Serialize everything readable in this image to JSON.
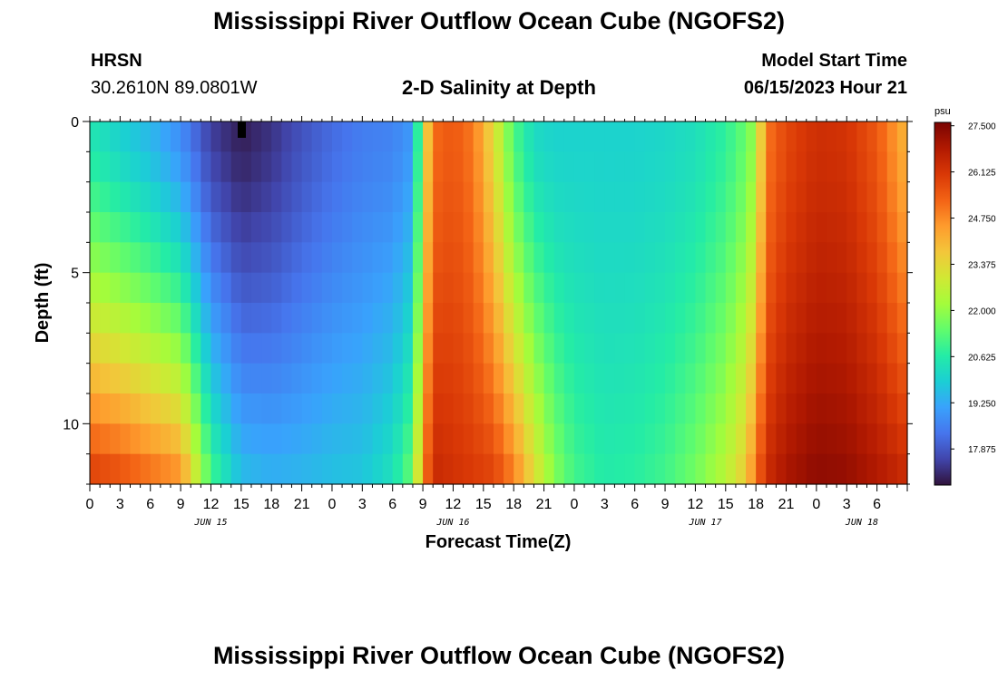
{
  "header": {
    "title": "Mississippi River Outflow Ocean Cube (NGOFS2)",
    "station": "HRSN",
    "location": "30.2610N  89.0801W",
    "subtitle": "2-D Salinity at Depth",
    "model_start_label": "Model Start Time",
    "model_start_value": "06/15/2023 Hour 21"
  },
  "footer": {
    "title": "Mississippi River Outflow Ocean Cube (NGOFS2)"
  },
  "chart_data": {
    "type": "heatmap",
    "title": "2-D Salinity at Depth",
    "xlabel": "Forecast Time(Z)",
    "ylabel": "Depth (ft)",
    "x_tick_labels": [
      "0",
      "3",
      "6",
      "9",
      "12",
      "15",
      "18",
      "21",
      "0",
      "3",
      "6",
      "9",
      "12",
      "15",
      "18",
      "21",
      "0",
      "3",
      "6",
      "9",
      "12",
      "15",
      "18",
      "21",
      "0",
      "3",
      "6"
    ],
    "x_hours": [
      0,
      81
    ],
    "date_labels": [
      {
        "label": "JUN 15",
        "hour": 12
      },
      {
        "label": "JUN 16",
        "hour": 36
      },
      {
        "label": "JUN 17",
        "hour": 61
      },
      {
        "label": "JUN 18",
        "hour": 76.5
      }
    ],
    "ylim": [
      0,
      12
    ],
    "y_ticks": [
      0,
      5,
      10
    ],
    "colorbar": {
      "unit": "psu",
      "tick_labels": [
        "27.500",
        "26.125",
        "24.750",
        "23.375",
        "22.000",
        "20.625",
        "19.250",
        "17.875"
      ],
      "range": [
        16.8,
        27.6
      ],
      "palette": [
        "#30123b",
        "#4145ab",
        "#4675ed",
        "#39a2fc",
        "#1bcfd4",
        "#24eca6",
        "#61fc6c",
        "#a4fc3b",
        "#d1e834",
        "#f3c63a",
        "#fe9b2d",
        "#f36315",
        "#d93806",
        "#b11901",
        "#7a0402"
      ]
    },
    "depth_levels_ft": [
      0.5,
      1.5,
      2.5,
      3.5,
      4.5,
      5.5,
      6.5,
      7.5,
      8.5,
      9.5,
      10.5,
      11.5
    ],
    "salinity_psu_anchors": [
      {
        "hour": 0,
        "surface": 20.5,
        "bottom": 25.8
      },
      {
        "hour": 3,
        "surface": 20.0,
        "bottom": 25.5
      },
      {
        "hour": 6,
        "surface": 19.5,
        "bottom": 25.0
      },
      {
        "hour": 9,
        "surface": 18.8,
        "bottom": 24.5
      },
      {
        "hour": 12,
        "surface": 17.5,
        "bottom": 21.0
      },
      {
        "hour": 15,
        "surface": 17.0,
        "bottom": 19.5
      },
      {
        "hour": 18,
        "surface": 17.3,
        "bottom": 19.3
      },
      {
        "hour": 21,
        "surface": 17.8,
        "bottom": 19.4
      },
      {
        "hour": 24,
        "surface": 18.2,
        "bottom": 19.6
      },
      {
        "hour": 27,
        "surface": 18.5,
        "bottom": 19.7
      },
      {
        "hour": 30,
        "surface": 18.6,
        "bottom": 20.3
      },
      {
        "hour": 32,
        "surface": 19.0,
        "bottom": 21.5
      },
      {
        "hour": 33,
        "surface": 22.5,
        "bottom": 24.5
      },
      {
        "hour": 34,
        "surface": 25.2,
        "bottom": 26.4
      },
      {
        "hour": 36,
        "surface": 25.5,
        "bottom": 26.2
      },
      {
        "hour": 38,
        "surface": 25.0,
        "bottom": 26.0
      },
      {
        "hour": 40,
        "surface": 23.3,
        "bottom": 25.8
      },
      {
        "hour": 42,
        "surface": 21.2,
        "bottom": 24.8
      },
      {
        "hour": 44,
        "surface": 20.2,
        "bottom": 23.2
      },
      {
        "hour": 46,
        "surface": 20.0,
        "bottom": 21.8
      },
      {
        "hour": 48,
        "surface": 20.0,
        "bottom": 21.0
      },
      {
        "hour": 51,
        "surface": 20.0,
        "bottom": 20.6
      },
      {
        "hour": 54,
        "surface": 20.0,
        "bottom": 20.7
      },
      {
        "hour": 57,
        "surface": 20.1,
        "bottom": 21.0
      },
      {
        "hour": 60,
        "surface": 20.3,
        "bottom": 21.6
      },
      {
        "hour": 63,
        "surface": 20.8,
        "bottom": 22.5
      },
      {
        "hour": 65,
        "surface": 21.5,
        "bottom": 23.6
      },
      {
        "hour": 66,
        "surface": 22.2,
        "bottom": 25.0
      },
      {
        "hour": 67,
        "surface": 25.0,
        "bottom": 26.3
      },
      {
        "hour": 69,
        "surface": 25.8,
        "bottom": 26.9
      },
      {
        "hour": 72,
        "surface": 26.3,
        "bottom": 27.3
      },
      {
        "hour": 75,
        "surface": 26.2,
        "bottom": 27.2
      },
      {
        "hour": 78,
        "surface": 25.5,
        "bottom": 26.8
      },
      {
        "hour": 81,
        "surface": 24.0,
        "bottom": 26.3
      }
    ]
  }
}
